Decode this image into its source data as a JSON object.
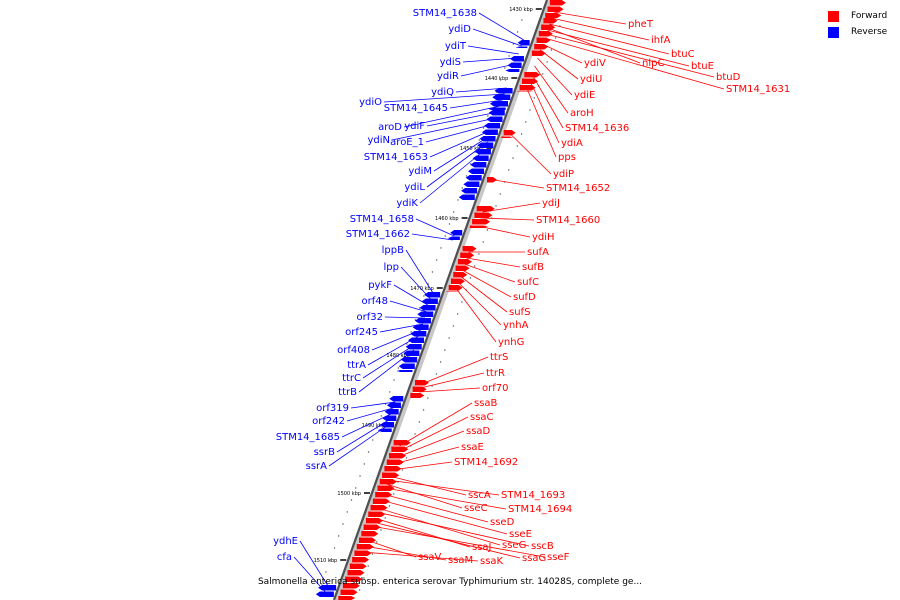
{
  "legend": [
    {
      "label": "Forward",
      "color": "#ff0000"
    },
    {
      "label": "Reverse",
      "color": "#0000ff"
    }
  ],
  "caption": "Salmonella enterica subsp. enterica serovar Typhimurium str. 14028S, complete ge...",
  "ticks": [
    "1430 kbp",
    "1440 kbp",
    "1450 kbp",
    "1460 kbp",
    "1470 kbp",
    "1480 kbp",
    "1490 kbp",
    "1500 kbp",
    "1510 kbp"
  ],
  "forward_genes": [
    "pheT",
    "ihfA",
    "btuC",
    "nlpC",
    "btuE",
    "btuD",
    "STM14_1631",
    "ydiV",
    "ydiU",
    "ydiE",
    "aroH",
    "STM14_1636",
    "ydiA",
    "pps",
    "ydiP",
    "STM14_1652",
    "ydiJ",
    "STM14_1660",
    "ydiH",
    "sufA",
    "sufB",
    "sufC",
    "sufD",
    "sufS",
    "ynhA",
    "ynhG",
    "ttrS",
    "ttrR",
    "orf70",
    "ssaB",
    "ssaC",
    "ssaD",
    "ssaE",
    "STM14_1692",
    "sscA",
    "STM14_1693",
    "sseC",
    "STM14_1694",
    "sseD",
    "sseE",
    "sseG",
    "sscB",
    "ssaJ",
    "ssaG",
    "sseF",
    "ssaV",
    "ssaM",
    "ssaK"
  ],
  "reverse_genes": [
    "STM14_1638",
    "ydiD",
    "ydiT",
    "ydiS",
    "ydiR",
    "ydiQ",
    "ydiO",
    "STM14_1645",
    "aroD",
    "ydiF",
    "ydiN",
    "aroE_1",
    "STM14_1653",
    "ydiM",
    "ydiL",
    "ydiK",
    "STM14_1658",
    "STM14_1662",
    "lppB",
    "lpp",
    "pykF",
    "orf48",
    "orf32",
    "orf245",
    "orf408",
    "ttrA",
    "ttrC",
    "ttrB",
    "orf319",
    "orf242",
    "STM14_1685",
    "ssrB",
    "ssrA",
    "ydhE",
    "cfa"
  ]
}
